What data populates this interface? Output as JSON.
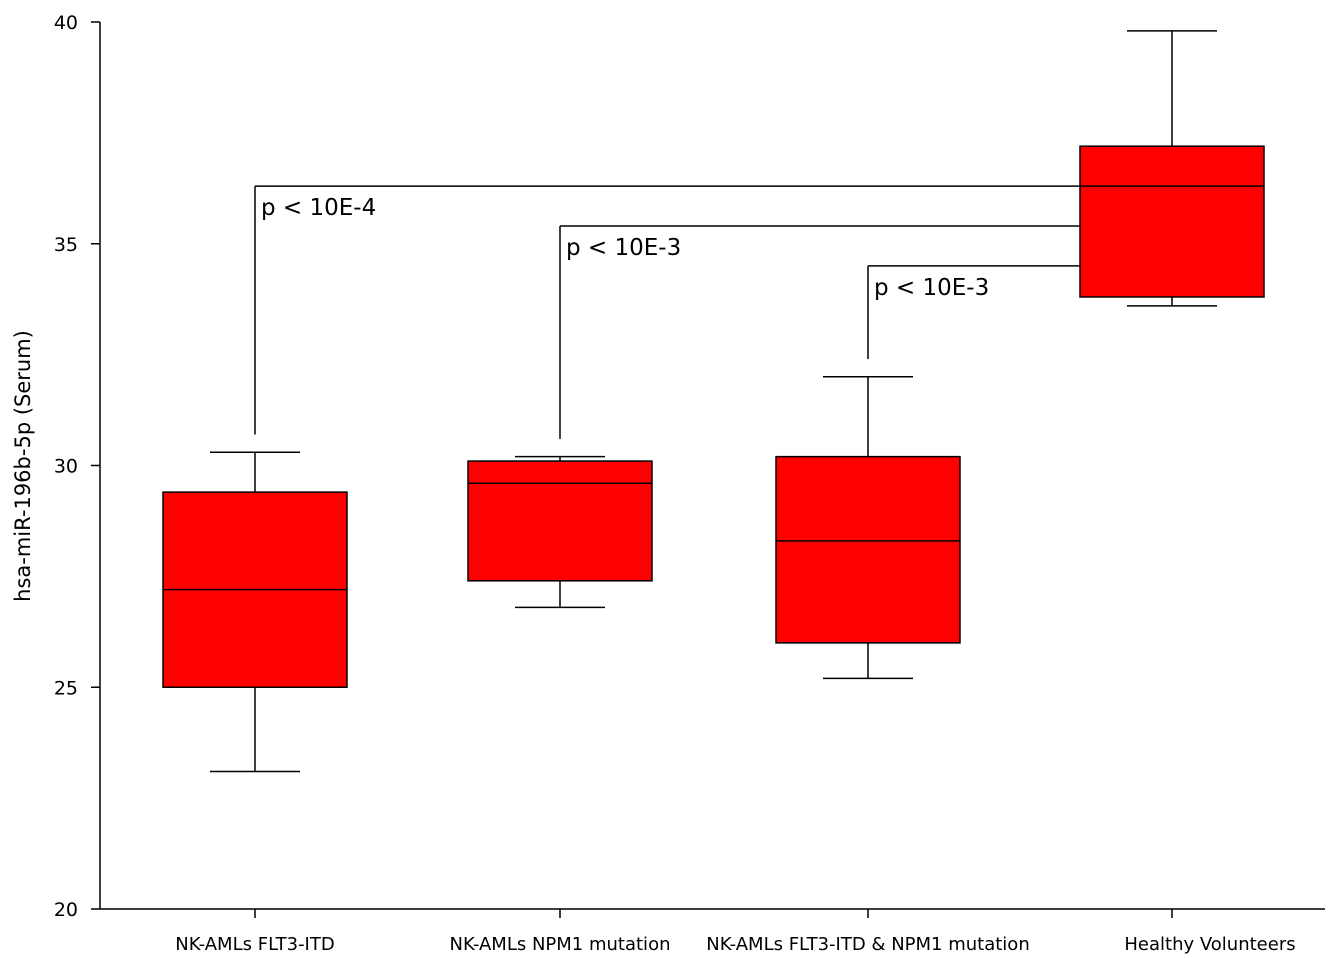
{
  "chart_data": {
    "type": "box",
    "title": "",
    "xlabel": "",
    "ylabel": "hsa-miR-196b-5p (Serum)",
    "ylim": [
      20,
      40
    ],
    "yticks": [
      20,
      25,
      30,
      35,
      40
    ],
    "grid": false,
    "box_color": "#ff0000",
    "categories": [
      "NK-AMLs FLT3-ITD",
      "NK-AMLs NPM1 mutation",
      "NK-AMLs FLT3-ITD & NPM1 mutation",
      "Healthy Volunteers"
    ],
    "boxes": [
      {
        "whisker_low": 23.1,
        "q1": 25.0,
        "median": 27.2,
        "q3": 29.4,
        "whisker_high": 30.3
      },
      {
        "whisker_low": 26.8,
        "q1": 27.4,
        "median": 29.6,
        "q3": 30.1,
        "whisker_high": 30.2
      },
      {
        "whisker_low": 25.2,
        "q1": 26.0,
        "median": 28.3,
        "q3": 30.2,
        "whisker_high": 32.0
      },
      {
        "whisker_low": 33.6,
        "q1": 33.8,
        "median": 36.3,
        "q3": 37.2,
        "whisker_high": 39.8
      }
    ],
    "annotations": [
      {
        "text": "p < 10E-4",
        "from": 0,
        "to": 3,
        "bar_y": 36.3,
        "drop_to": 30.7
      },
      {
        "text": "p < 10E-3",
        "from": 1,
        "to": 3,
        "bar_y": 35.4,
        "drop_to": 30.6
      },
      {
        "text": "p < 10E-3",
        "from": 2,
        "to": 3,
        "bar_y": 34.5,
        "drop_to": 32.4
      }
    ]
  }
}
